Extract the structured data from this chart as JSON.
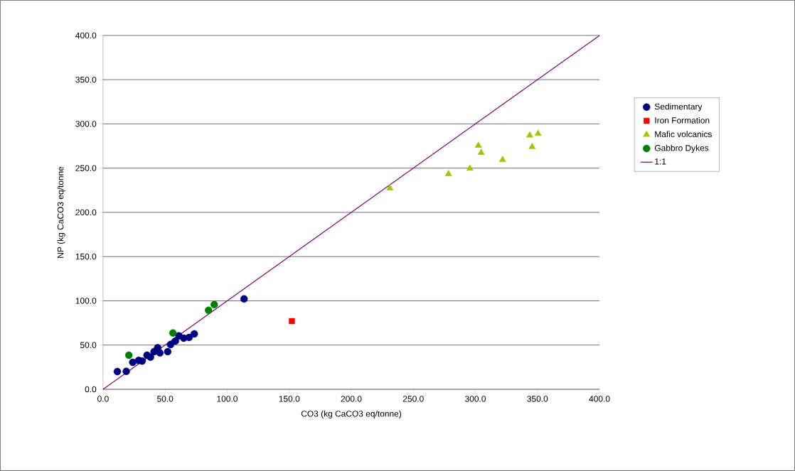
{
  "chart_data": {
    "type": "scatter",
    "xlabel": "CO3 (kg CaCO3 eq/tonne)",
    "ylabel": "NP (kg CaCO3 eq/tonne",
    "xlim": [
      0,
      400
    ],
    "ylim": [
      0,
      400
    ],
    "xticks": [
      {
        "value": 0,
        "label": "0.0"
      },
      {
        "value": 50,
        "label": "50.0"
      },
      {
        "value": 100,
        "label": "100.0"
      },
      {
        "value": 150,
        "label": "150.0"
      },
      {
        "value": 200,
        "label": "200.0"
      },
      {
        "value": 250,
        "label": "250.0"
      },
      {
        "value": 300,
        "label": "300.0"
      },
      {
        "value": 350,
        "label": "350.0"
      },
      {
        "value": 400,
        "label": "400.0"
      }
    ],
    "yticks": [
      {
        "value": 0,
        "label": "0.0"
      },
      {
        "value": 50,
        "label": "50.0"
      },
      {
        "value": 100,
        "label": "100.0"
      },
      {
        "value": 150,
        "label": "150.0"
      },
      {
        "value": 200,
        "label": "200.0"
      },
      {
        "value": 250,
        "label": "250.0"
      },
      {
        "value": 300,
        "label": "300.0"
      },
      {
        "value": 350,
        "label": "350.0"
      },
      {
        "value": 400,
        "label": "400.0"
      }
    ],
    "grid": "y",
    "legend": "right",
    "series": [
      {
        "name": "Sedimentary",
        "color": "#000080",
        "marker": "circle",
        "x": [
          11.5,
          18.7,
          23.9,
          28.7,
          31.5,
          35.4,
          38.2,
          41.1,
          44,
          45.8,
          52.1,
          54.4,
          58.3,
          61.1,
          65,
          69.3,
          73.5,
          113.6
        ],
        "values": [
          20,
          20.3,
          30.5,
          32.7,
          32,
          38.6,
          36.4,
          42.6,
          47,
          41.2,
          42.6,
          50.6,
          54.6,
          60.5,
          57.8,
          58.6,
          62.7,
          102.2
        ]
      },
      {
        "name": "Iron Formation",
        "color": "#ff0000",
        "marker": "square",
        "x": [
          152.1
        ],
        "values": [
          77.1
        ]
      },
      {
        "name": "Mafic volcanics",
        "color": "#99cc00",
        "marker": "triangle",
        "x": [
          231.1,
          278.3,
          295.5,
          302.4,
          304.7,
          321.9,
          343.8,
          350.5,
          345.7
        ],
        "values": [
          227.3,
          243.4,
          249.6,
          275.5,
          267.5,
          259.4,
          287,
          289,
          274.1
        ]
      },
      {
        "name": "Gabbro Dykes",
        "color": "#008000",
        "marker": "circle",
        "x": [
          20.8,
          56.3,
          85,
          89.6
        ],
        "values": [
          38.6,
          63.7,
          89.4,
          95.8
        ]
      },
      {
        "name": "1:1",
        "type": "line",
        "color": "#800080",
        "marker": "none",
        "line_style": "solid",
        "x": [
          0,
          400
        ],
        "values": [
          0,
          400
        ]
      }
    ]
  }
}
